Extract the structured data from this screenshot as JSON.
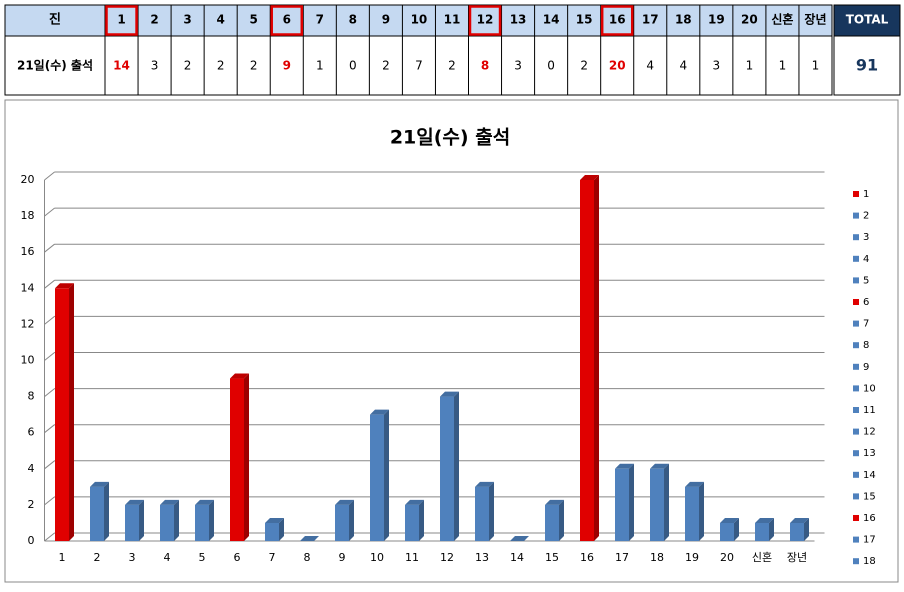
{
  "table": {
    "corner": "진",
    "total_header": "TOTAL",
    "total": "91",
    "highlight": [
      true,
      false,
      false,
      false,
      false,
      true,
      false,
      false,
      false,
      false,
      false,
      true,
      false,
      false,
      false,
      true,
      false,
      false,
      false,
      false,
      false,
      false
    ]
  },
  "chart_data": {
    "type": "bar",
    "title": "21일(수) 출석",
    "categories": [
      "1",
      "2",
      "3",
      "4",
      "5",
      "6",
      "7",
      "8",
      "9",
      "10",
      "11",
      "12",
      "13",
      "14",
      "15",
      "16",
      "17",
      "18",
      "19",
      "20",
      "신혼",
      "장년"
    ],
    "values": [
      14,
      3,
      2,
      2,
      2,
      9,
      1,
      0,
      2,
      7,
      2,
      8,
      3,
      0,
      2,
      20,
      4,
      4,
      3,
      1,
      1,
      1
    ],
    "colors": [
      "#e00000",
      "#4f81bd",
      "#4f81bd",
      "#4f81bd",
      "#4f81bd",
      "#e00000",
      "#4f81bd",
      "#4f81bd",
      "#4f81bd",
      "#4f81bd",
      "#4f81bd",
      "#4f81bd",
      "#4f81bd",
      "#4f81bd",
      "#4f81bd",
      "#e00000",
      "#4f81bd",
      "#4f81bd",
      "#4f81bd",
      "#4f81bd",
      "#4f81bd",
      "#4f81bd"
    ],
    "ylim": [
      0,
      20
    ],
    "yticks": [
      0,
      2,
      4,
      6,
      8,
      10,
      12,
      14,
      16,
      18,
      20
    ],
    "grid": true,
    "legend": "right"
  }
}
